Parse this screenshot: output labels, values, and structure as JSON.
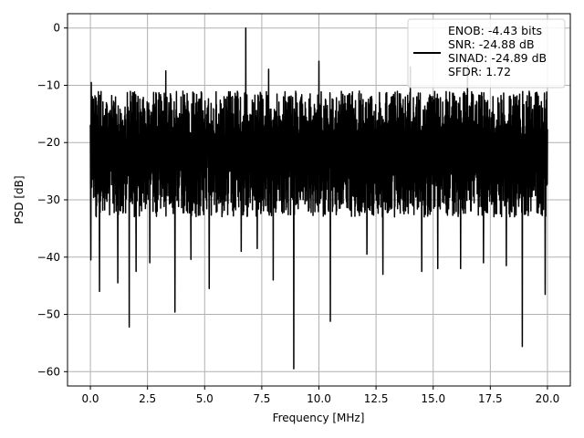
{
  "chart_data": {
    "type": "line",
    "title": "",
    "xlabel": "Frequency [MHz]",
    "ylabel": "PSD [dB]",
    "xlim": [
      -1.0,
      21.0
    ],
    "ylim": [
      -62.5,
      2.5
    ],
    "xticks": [
      0.0,
      2.5,
      5.0,
      7.5,
      10.0,
      12.5,
      15.0,
      17.5,
      20.0
    ],
    "xtick_labels": [
      "0.0",
      "2.5",
      "5.0",
      "7.5",
      "10.0",
      "12.5",
      "15.0",
      "17.5",
      "20.0"
    ],
    "yticks": [
      0,
      -10,
      -20,
      -30,
      -40,
      -50,
      -60
    ],
    "ytick_labels": [
      "0",
      "−10",
      "−20",
      "−30",
      "−40",
      "−50",
      "−60"
    ],
    "grid": true,
    "legend_position": "top-right",
    "line_color": "#000000",
    "grid_color": "#b0b0b0",
    "legend_entries": [
      "ENOB: -4.43 bits",
      "SNR: -24.88 dB",
      "SINAD: -24.89 dB",
      "SFDR: 1.72"
    ],
    "series": [
      {
        "x_range": [
          0.0,
          20.0
        ],
        "typical_upper": -11,
        "typical_lower": -33,
        "baseline": -20,
        "peaks": [
          {
            "x": 0.04,
            "y": -9.5
          },
          {
            "x": 3.3,
            "y": -7.5
          },
          {
            "x": 6.8,
            "y": 0.0
          },
          {
            "x": 7.8,
            "y": -7.2
          },
          {
            "x": 10.0,
            "y": -5.8
          },
          {
            "x": 14.0,
            "y": -6.8
          },
          {
            "x": 16.5,
            "y": -6.6
          },
          {
            "x": 19.9,
            "y": -8.0
          }
        ],
        "dips": [
          {
            "x": 0.02,
            "y": -40.5
          },
          {
            "x": 0.4,
            "y": -46.0
          },
          {
            "x": 1.2,
            "y": -44.5
          },
          {
            "x": 1.7,
            "y": -52.2
          },
          {
            "x": 2.0,
            "y": -42.5
          },
          {
            "x": 2.6,
            "y": -41.0
          },
          {
            "x": 3.7,
            "y": -49.6
          },
          {
            "x": 4.4,
            "y": -40.4
          },
          {
            "x": 5.2,
            "y": -45.5
          },
          {
            "x": 6.6,
            "y": -39.0
          },
          {
            "x": 7.3,
            "y": -38.5
          },
          {
            "x": 8.0,
            "y": -44.0
          },
          {
            "x": 8.9,
            "y": -59.5
          },
          {
            "x": 10.5,
            "y": -51.2
          },
          {
            "x": 12.1,
            "y": -39.5
          },
          {
            "x": 12.8,
            "y": -43.0
          },
          {
            "x": 14.5,
            "y": -42.5
          },
          {
            "x": 15.2,
            "y": -42.0
          },
          {
            "x": 16.2,
            "y": -42.0
          },
          {
            "x": 17.2,
            "y": -41.0
          },
          {
            "x": 18.2,
            "y": -41.5
          },
          {
            "x": 18.9,
            "y": -55.6
          },
          {
            "x": 19.9,
            "y": -46.5
          }
        ]
      }
    ]
  }
}
